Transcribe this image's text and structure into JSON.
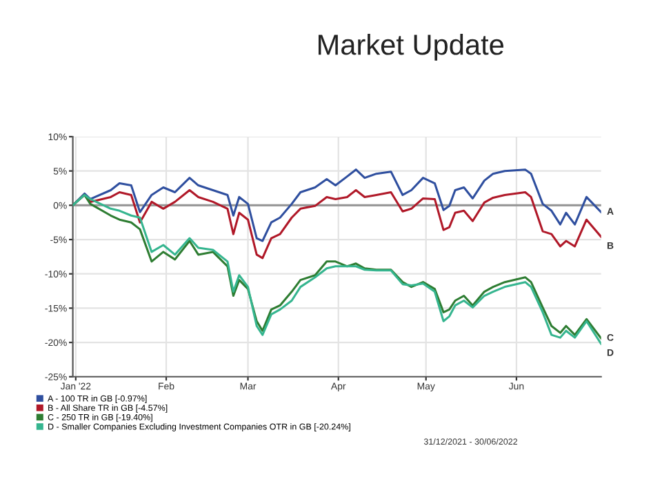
{
  "chart_data": {
    "type": "line",
    "title": "Market Update",
    "x": [
      "2021-12-31",
      "2022-01-04",
      "2022-01-06",
      "2022-01-13",
      "2022-01-16",
      "2022-01-20",
      "2022-01-23",
      "2022-01-27",
      "2022-01-31",
      "2022-02-04",
      "2022-02-09",
      "2022-02-12",
      "2022-02-17",
      "2022-02-22",
      "2022-02-24",
      "2022-02-26",
      "2022-03-01",
      "2022-03-04",
      "2022-03-06",
      "2022-03-09",
      "2022-03-12",
      "2022-03-16",
      "2022-03-19",
      "2022-03-24",
      "2022-03-28",
      "2022-03-31",
      "2022-04-04",
      "2022-04-07",
      "2022-04-10",
      "2022-04-14",
      "2022-04-19",
      "2022-04-23",
      "2022-04-26",
      "2022-04-30",
      "2022-05-04",
      "2022-05-07",
      "2022-05-09",
      "2022-05-11",
      "2022-05-14",
      "2022-05-17",
      "2022-05-21",
      "2022-05-24",
      "2022-05-28",
      "2022-06-04",
      "2022-06-06",
      "2022-06-10",
      "2022-06-13",
      "2022-06-16",
      "2022-06-18",
      "2022-06-21",
      "2022-06-25",
      "2022-06-30"
    ],
    "series": [
      {
        "name": "A - 100 TR in GB [-0.97%]",
        "color": "#2f4f9f",
        "values": [
          0,
          1.7,
          0.9,
          2.2,
          3.2,
          2.9,
          -1.0,
          1.5,
          2.6,
          1.9,
          4.0,
          2.9,
          2.2,
          1.5,
          -1.5,
          1.2,
          0.2,
          -4.8,
          -5.2,
          -2.5,
          -1.8,
          0.2,
          1.9,
          2.6,
          3.8,
          2.9,
          4.2,
          5.2,
          4.0,
          4.6,
          4.9,
          1.5,
          2.2,
          4.0,
          3.2,
          -0.7,
          -0.1,
          2.2,
          2.6,
          1.0,
          3.6,
          4.6,
          5.0,
          5.2,
          4.6,
          0.2,
          -0.8,
          -2.8,
          -1.1,
          -2.8,
          1.2,
          -1.0
        ]
      },
      {
        "name": "B - All Share TR in GB [-4.57%]",
        "color": "#b01828",
        "values": [
          0,
          1.5,
          0.5,
          1.2,
          1.9,
          1.5,
          -2.5,
          0.5,
          -0.5,
          0.5,
          2.2,
          1.2,
          0.5,
          -0.5,
          -4.2,
          -1.1,
          -2.1,
          -7.2,
          -7.7,
          -4.8,
          -4.2,
          -1.8,
          -0.5,
          -0.1,
          1.2,
          0.9,
          1.2,
          2.2,
          1.2,
          1.5,
          1.9,
          -0.9,
          -0.5,
          1.0,
          0.9,
          -3.6,
          -3.2,
          -1.1,
          -0.8,
          -2.3,
          0.4,
          1.1,
          1.5,
          1.9,
          1.2,
          -3.8,
          -4.2,
          -6.0,
          -5.2,
          -6.0,
          -2.1,
          -4.6
        ]
      },
      {
        "name": "C - 250 TR in GB [-19.40%]",
        "color": "#2e7d32",
        "values": [
          0,
          1.5,
          0.2,
          -1.5,
          -2.1,
          -2.5,
          -3.5,
          -8.2,
          -6.8,
          -7.9,
          -5.2,
          -7.2,
          -6.8,
          -8.9,
          -13.2,
          -10.9,
          -12.2,
          -16.9,
          -18.3,
          -15.2,
          -14.6,
          -12.6,
          -10.9,
          -10.2,
          -8.2,
          -8.2,
          -8.9,
          -8.5,
          -9.2,
          -9.4,
          -9.4,
          -11.2,
          -11.9,
          -11.2,
          -12.2,
          -15.6,
          -15.2,
          -13.9,
          -13.2,
          -14.6,
          -12.6,
          -11.9,
          -11.2,
          -10.5,
          -11.2,
          -14.9,
          -17.6,
          -18.6,
          -17.6,
          -18.9,
          -16.6,
          -19.4
        ]
      },
      {
        "name": "D - Smaller Companies Excluding Investment Companies OTR in GB [-20.24%]",
        "color": "#35b58f",
        "values": [
          0,
          1.5,
          0.9,
          -0.5,
          -0.8,
          -1.5,
          -1.8,
          -6.8,
          -5.8,
          -7.2,
          -4.8,
          -6.2,
          -6.5,
          -8.2,
          -12.6,
          -10.2,
          -11.9,
          -17.6,
          -18.9,
          -15.9,
          -15.2,
          -13.9,
          -11.9,
          -10.5,
          -9.2,
          -8.9,
          -8.9,
          -8.9,
          -9.4,
          -9.5,
          -9.5,
          -11.5,
          -11.7,
          -11.4,
          -12.6,
          -16.9,
          -16.2,
          -14.6,
          -13.9,
          -14.9,
          -13.2,
          -12.6,
          -11.9,
          -11.2,
          -11.9,
          -15.6,
          -18.9,
          -19.3,
          -18.3,
          -19.3,
          -16.9,
          -20.2
        ]
      }
    ],
    "xlim": [
      "2021-12-31",
      "2022-06-30"
    ],
    "xticks": [
      {
        "value": "2022-01-01",
        "label": "Jan '22"
      },
      {
        "value": "2022-02-01",
        "label": "Feb"
      },
      {
        "value": "2022-03-01",
        "label": "Mar"
      },
      {
        "value": "2022-04-01",
        "label": "Apr"
      },
      {
        "value": "2022-05-01",
        "label": "May"
      },
      {
        "value": "2022-06-01",
        "label": "Jun"
      }
    ],
    "ylim": [
      -25,
      10
    ],
    "yticks": [
      {
        "value": -25,
        "label": "-25%"
      },
      {
        "value": -20,
        "label": "-20%"
      },
      {
        "value": -15,
        "label": "-15%"
      },
      {
        "value": -10,
        "label": "-10%"
      },
      {
        "value": -5,
        "label": "-5%"
      },
      {
        "value": 0,
        "label": "0%"
      },
      {
        "value": 5,
        "label": "5%"
      },
      {
        "value": 10,
        "label": "10%"
      }
    ],
    "ref_lines": [
      {
        "axis": "y",
        "value": 0,
        "color": "#999999"
      }
    ],
    "grid": true,
    "legend": "bottom",
    "line_style": "solid",
    "marker": "none",
    "annotations": [
      {
        "text": "A",
        "x": "2022-06-30",
        "y": -1.0
      },
      {
        "text": "B",
        "x": "2022-06-30",
        "y": -4.6
      },
      {
        "text": "C",
        "x": "2022-06-30",
        "y": -19.4
      },
      {
        "text": "D",
        "x": "2022-06-30",
        "y": -20.2
      },
      "31/12/2021 - 30/06/2022"
    ]
  }
}
